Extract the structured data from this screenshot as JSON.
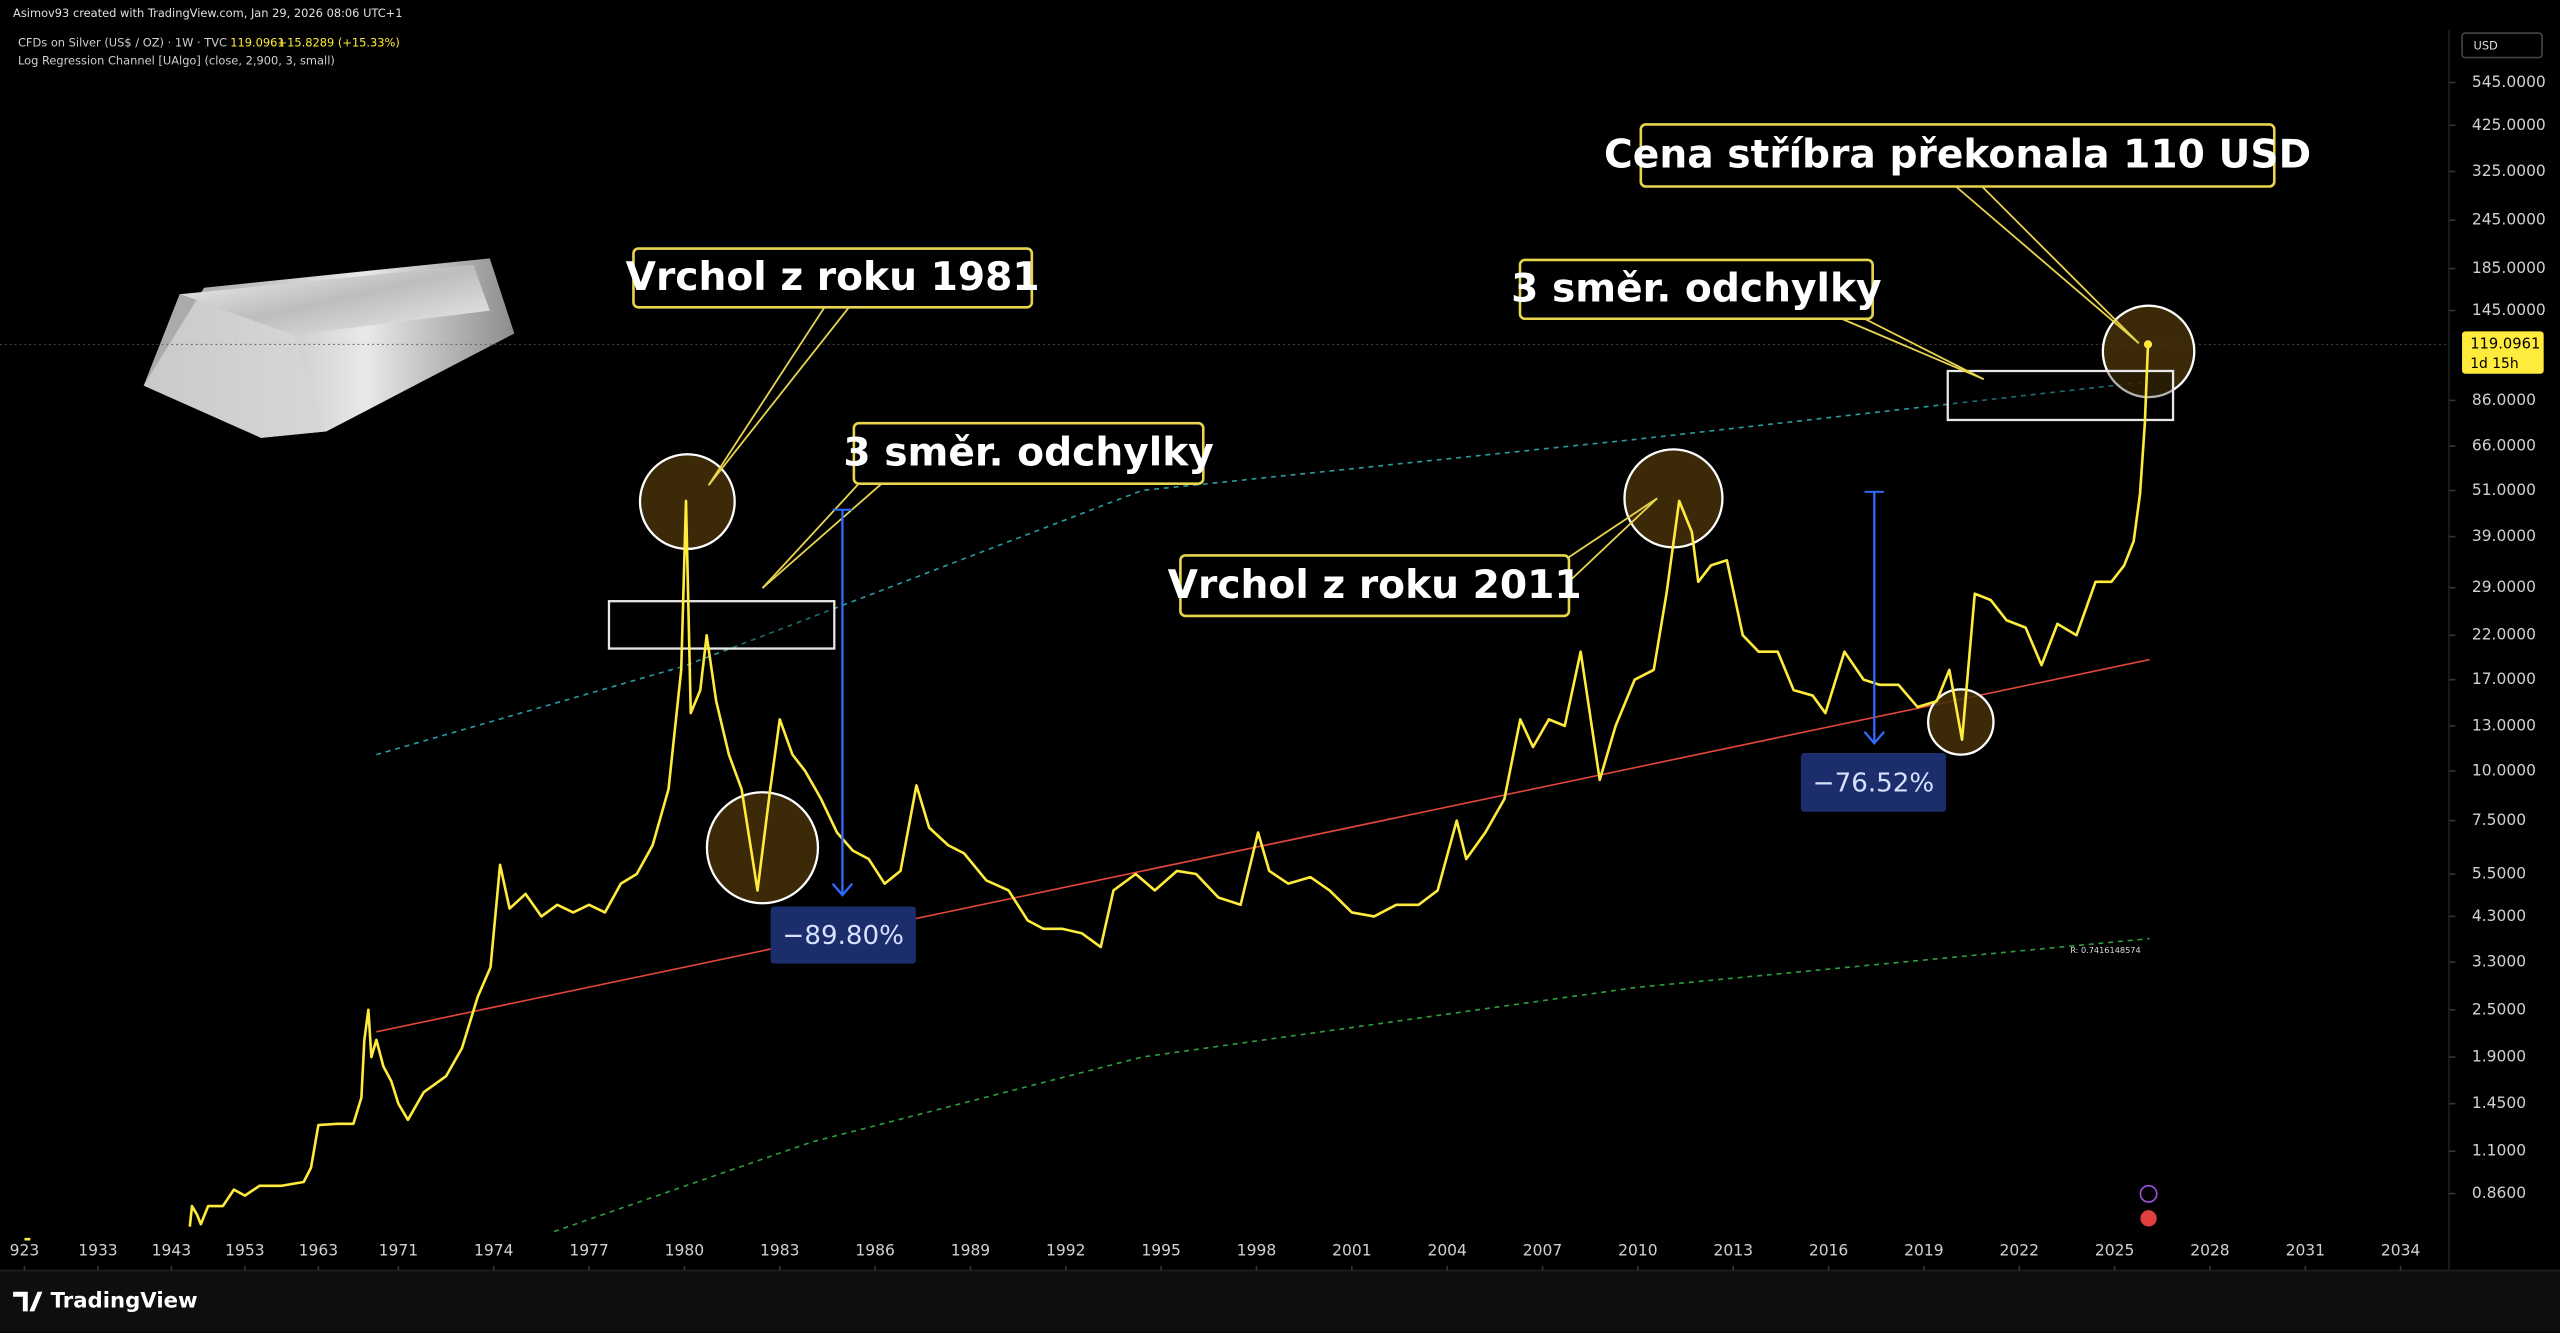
{
  "chart_data": {
    "type": "line",
    "credit": "Asimov93 created with TradingView.com, Jan 29, 2026 08:06 UTC+1",
    "symbol_label": "CFDs on Silver (US$ / OZ) · 1W · TVC",
    "last_price": 119.0961,
    "change_label": "+15.8289 (+15.33%)",
    "indicator_label": "Log Regression Channel [UAlgo] (close, 2,900, 3, small)",
    "currency": "USD",
    "countdown": "1d 15h",
    "r_label": "R: 0.7416148574",
    "brand": "TradingView",
    "log_scale": true,
    "grid": false,
    "xlim": [
      1921,
      2036
    ],
    "ylim": [
      0.55,
      740
    ],
    "xticks": [
      {
        "value": 1923,
        "label": "923"
      },
      1933,
      1943,
      1953,
      1963,
      1971,
      1974,
      1977,
      1980,
      1983,
      1986,
      1989,
      1992,
      1995,
      1998,
      2001,
      2004,
      2007,
      2010,
      2013,
      2016,
      2019,
      2022,
      2025,
      2028,
      2031,
      2034
    ],
    "yticks": [
      {
        "value": 545,
        "label": "545.0000"
      },
      {
        "value": 425,
        "label": "425.0000"
      },
      {
        "value": 325,
        "label": "325.0000"
      },
      {
        "value": 245,
        "label": "245.0000"
      },
      {
        "value": 185,
        "label": "185.0000"
      },
      {
        "value": 145,
        "label": "145.0000"
      },
      {
        "value": 86,
        "label": "86.0000"
      },
      {
        "value": 66,
        "label": "66.0000"
      },
      {
        "value": 51,
        "label": "51.0000"
      },
      {
        "value": 39,
        "label": "39.0000"
      },
      {
        "value": 29,
        "label": "29.0000"
      },
      {
        "value": 22,
        "label": "22.0000"
      },
      {
        "value": 17,
        "label": "17.0000"
      },
      {
        "value": 13,
        "label": "13.0000"
      },
      {
        "value": 10,
        "label": "10.0000"
      },
      {
        "value": 7.5,
        "label": "7.5000"
      },
      {
        "value": 5.5,
        "label": "5.5000"
      },
      {
        "value": 4.3,
        "label": "4.3000"
      },
      {
        "value": 3.3,
        "label": "3.3000"
      },
      {
        "value": 2.5,
        "label": "2.5000"
      },
      {
        "value": 1.9,
        "label": "1.9000"
      },
      {
        "value": 1.45,
        "label": "1.4500"
      },
      {
        "value": 1.1,
        "label": "1.1000"
      },
      {
        "value": 0.86,
        "label": "0.8600"
      }
    ],
    "series": [
      {
        "color": "#ffeb3b",
        "x": [
          1923.0,
          1923.8,
          null,
          1945.5,
          1945.8,
          1946.5,
          1947,
          1948,
          1950,
          1951.5,
          1953,
          1955,
          1958,
          1961,
          1962,
          1963,
          1965,
          1966.5,
          1967.3,
          1967.6,
          1968.0,
          1968.3,
          1968.8,
          1969.5,
          1970.3,
          1971.0,
          1971.3,
          1971.8,
          1972.5,
          1973.0,
          1973.5,
          1973.9,
          1974.2,
          1974.5,
          1975.0,
          1975.5,
          1976.0,
          1976.5,
          1977.0,
          1977.5,
          1978.0,
          1978.5,
          1979.0,
          1979.5,
          1979.9,
          1980.05,
          1980.2,
          1980.5,
          1980.7,
          1981,
          1981.4,
          1981.8,
          1982.3,
          1982.7,
          1983.0,
          1983.4,
          1983.8,
          1984.3,
          1984.8,
          1985.3,
          1985.8,
          1986.3,
          1986.8,
          1987.3,
          1987.7,
          1988.3,
          1988.8,
          1989.5,
          1990.2,
          1990.8,
          1991.3,
          1991.9,
          1992.5,
          1993.1,
          1993.5,
          1994.2,
          1994.8,
          1995.5,
          1996.1,
          1996.8,
          1997.5,
          1998.05,
          1998.4,
          1999,
          1999.7,
          2000.3,
          2001,
          2001.7,
          2002.4,
          2003.1,
          2003.7,
          2004.3,
          2004.6,
          2005.2,
          2005.8,
          2006.3,
          2006.7,
          2007.2,
          2007.7,
          2008.2,
          2008.8,
          2009.3,
          2009.9,
          2010.5,
          2010.9,
          2011.3,
          2011.7,
          2011.9,
          2012.3,
          2012.8,
          2013.3,
          2013.8,
          2014.4,
          2014.9,
          2015.5,
          2015.9,
          2016.5,
          2017.1,
          2017.6,
          2018.2,
          2018.8,
          2019.4,
          2019.8,
          2020.2,
          2020.6,
          2021.1,
          2021.6,
          2022.2,
          2022.7,
          2023.2,
          2023.8,
          2024.4,
          2024.9,
          2025.3,
          2025.6,
          2025.8,
          2025.95,
          2026.05
        ],
        "values": [
          0.66,
          0.66,
          null,
          0.71,
          0.8,
          0.76,
          0.72,
          0.8,
          0.8,
          0.88,
          0.85,
          0.9,
          0.9,
          0.92,
          1.0,
          1.28,
          1.29,
          1.29,
          1.5,
          2.1,
          2.5,
          1.9,
          2.1,
          1.8,
          1.65,
          1.45,
          1.32,
          1.55,
          1.7,
          2.0,
          2.7,
          3.2,
          5.8,
          4.5,
          4.9,
          4.3,
          4.6,
          4.4,
          4.6,
          4.4,
          5.2,
          5.5,
          6.5,
          9.0,
          18,
          48,
          14,
          16,
          22,
          15,
          11,
          9,
          5.0,
          9,
          13.5,
          11,
          10,
          8.5,
          7.0,
          6.3,
          6.0,
          5.2,
          5.6,
          9.2,
          7.2,
          6.5,
          6.2,
          5.3,
          5.0,
          4.2,
          4.0,
          4.0,
          3.9,
          3.6,
          5.0,
          5.5,
          5.0,
          5.6,
          5.5,
          4.8,
          4.6,
          7.0,
          5.6,
          5.2,
          5.4,
          5.0,
          4.4,
          4.3,
          4.6,
          4.6,
          5.0,
          7.5,
          6.0,
          7.0,
          8.5,
          13.5,
          11.5,
          13.5,
          13,
          20,
          9.5,
          13,
          17,
          18,
          28,
          48,
          40,
          30,
          33,
          34,
          22,
          20,
          20,
          16,
          15.5,
          14,
          20,
          17,
          16.5,
          16.5,
          14.5,
          15,
          18,
          12,
          28,
          27,
          24,
          23,
          18.5,
          23.5,
          22,
          30,
          30,
          33,
          38,
          50,
          75,
          119.0961
        ]
      }
    ],
    "regression_lines": [
      {
        "color": "#e0463a",
        "dashed": false,
        "x": [
          1968.8,
          2026.1
        ],
        "values": [
          2.2,
          19.1
        ]
      },
      {
        "color": "#2a9aa0",
        "dashed": true,
        "x": [
          1968.8,
          1980,
          1994.4,
          2010,
          2026.1
        ],
        "values": [
          11,
          18.4,
          51,
          68.7,
          96
        ]
      },
      {
        "color": "#2e9e3a",
        "dashed": true,
        "x": [
          1975.9,
          1984,
          1994.4,
          2010,
          2026.1
        ],
        "values": [
          0.69,
          1.16,
          1.9,
          2.85,
          3.78
        ]
      }
    ],
    "annotations": [
      {
        "text": "Vrchol z roku 1981"
      },
      {
        "text": "3 směr. odchylky"
      },
      {
        "text": "Vrchol z roku 2011"
      },
      {
        "text": "3 směr. odchylky"
      },
      {
        "text": "Cena stříbra překonala 110 USD"
      }
    ],
    "measures": [
      {
        "text": "−89.80%"
      },
      {
        "text": "−76.52%"
      }
    ]
  }
}
